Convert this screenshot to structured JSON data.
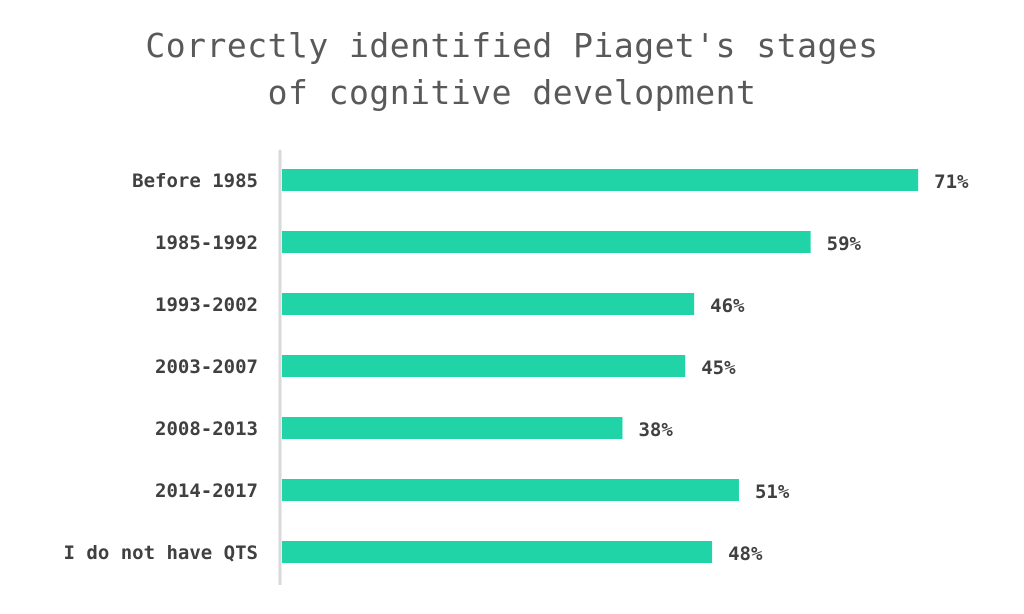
{
  "chart_data": {
    "type": "bar",
    "orientation": "horizontal",
    "title_lines": [
      "Correctly identified Piaget's stages",
      "of cognitive development"
    ],
    "categories": [
      "Before 1985",
      "1985-1992",
      "1993-2002",
      "2003-2007",
      "2008-2013",
      "2014-2017",
      "I do not have QTS"
    ],
    "values": [
      71,
      59,
      46,
      45,
      38,
      51,
      48
    ],
    "value_labels": [
      "71%",
      "59%",
      "46%",
      "45%",
      "38%",
      "51%",
      "48%"
    ],
    "xlabel": "",
    "ylabel": "",
    "xlim": [
      0,
      100
    ],
    "grid": false,
    "legend": "none",
    "bar_color": "#21d4a8",
    "axis_color": "#d9d9d9"
  }
}
